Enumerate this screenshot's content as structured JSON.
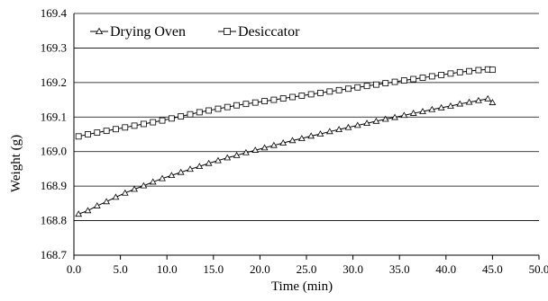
{
  "chart_data": {
    "type": "line",
    "title": "",
    "xlabel": "Time (min)",
    "ylabel": "Weight (g)",
    "xlim": [
      0.0,
      50.0
    ],
    "ylim": [
      168.7,
      169.4
    ],
    "x_ticks": [
      "0.0",
      "5.0",
      "10.0",
      "15.0",
      "20.0",
      "25.0",
      "30.0",
      "35.0",
      "40.0",
      "45.0",
      "50.0"
    ],
    "y_ticks": [
      "168.7",
      "168.8",
      "168.9",
      "169.0",
      "169.1",
      "169.2",
      "169.3",
      "169.4"
    ],
    "grid": "horizontal",
    "legend_position": "top-left",
    "series": [
      {
        "name": "Drying Oven",
        "marker": "triangle",
        "color": "#000000",
        "x": [
          0.5,
          1.5,
          2.5,
          3.5,
          4.5,
          5.5,
          6.5,
          7.5,
          8.5,
          9.5,
          10.5,
          11.5,
          12.5,
          13.5,
          14.5,
          15.5,
          16.5,
          17.5,
          18.5,
          19.5,
          20.5,
          21.5,
          22.5,
          23.5,
          24.5,
          25.5,
          26.5,
          27.5,
          28.5,
          29.5,
          30.5,
          31.5,
          32.5,
          33.5,
          34.5,
          35.5,
          36.5,
          37.5,
          38.5,
          39.5,
          40.5,
          41.5,
          42.5,
          43.5,
          44.5,
          45.0
        ],
        "y": [
          168.819,
          168.829,
          168.843,
          168.855,
          168.868,
          168.88,
          168.891,
          168.901,
          168.912,
          168.922,
          168.931,
          168.94,
          168.949,
          168.957,
          168.966,
          168.974,
          168.982,
          168.989,
          168.997,
          169.004,
          169.011,
          169.018,
          169.025,
          169.032,
          169.038,
          169.045,
          169.051,
          169.058,
          169.064,
          169.07,
          169.076,
          169.082,
          169.088,
          169.094,
          169.099,
          169.105,
          169.111,
          169.116,
          169.122,
          169.127,
          169.132,
          169.138,
          169.143,
          169.148,
          169.153,
          169.142
        ]
      },
      {
        "name": "Desiccator",
        "marker": "square",
        "color": "#000000",
        "x": [
          0.5,
          1.5,
          2.5,
          3.5,
          4.5,
          5.5,
          6.5,
          7.5,
          8.5,
          9.5,
          10.5,
          11.5,
          12.5,
          13.5,
          14.5,
          15.5,
          16.5,
          17.5,
          18.5,
          19.5,
          20.5,
          21.5,
          22.5,
          23.5,
          24.5,
          25.5,
          26.5,
          27.5,
          28.5,
          29.5,
          30.5,
          31.5,
          32.5,
          33.5,
          34.5,
          35.5,
          36.5,
          37.5,
          38.5,
          39.5,
          40.5,
          41.5,
          42.5,
          43.5,
          44.5,
          45.0
        ],
        "y": [
          169.044,
          169.05,
          169.055,
          169.06,
          169.065,
          169.07,
          169.075,
          169.08,
          169.085,
          169.09,
          169.096,
          169.102,
          169.108,
          169.114,
          169.119,
          169.124,
          169.129,
          169.134,
          169.138,
          169.142,
          169.146,
          169.15,
          169.154,
          169.158,
          169.162,
          169.166,
          169.17,
          169.174,
          169.178,
          169.182,
          169.186,
          169.19,
          169.194,
          169.198,
          169.202,
          169.206,
          169.21,
          169.214,
          169.218,
          169.222,
          169.226,
          169.23,
          169.233,
          169.236,
          169.238,
          169.237
        ]
      }
    ]
  }
}
